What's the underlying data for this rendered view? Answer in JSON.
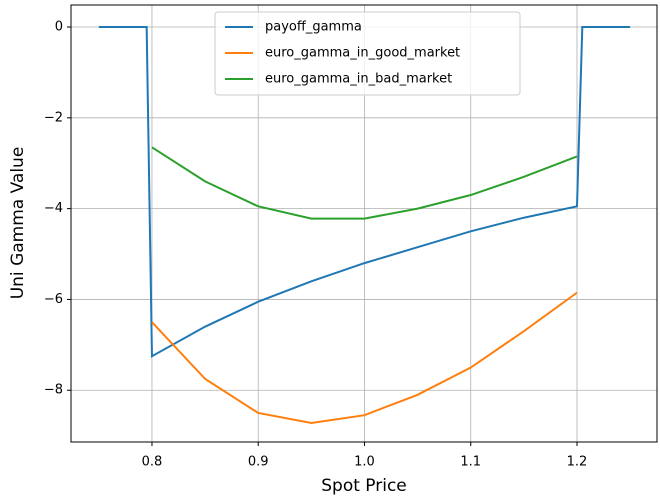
{
  "chart_data": {
    "type": "line",
    "xlabel": "Spot Price",
    "ylabel": "Uni Gamma Value",
    "x": [
      0.75,
      0.795,
      0.8,
      0.85,
      0.9,
      0.95,
      1.0,
      1.05,
      1.1,
      1.15,
      1.2,
      1.205,
      1.25
    ],
    "series": [
      {
        "name": "payoff_gamma",
        "color": "#1f77b4",
        "values": [
          0,
          0,
          -7.25,
          -6.6,
          -6.05,
          -5.6,
          -5.2,
          -4.85,
          -4.5,
          -4.2,
          -3.95,
          0,
          0
        ]
      },
      {
        "name": "euro_gamma_in_good_market",
        "color": "#ff7f0e",
        "values": [
          null,
          null,
          -6.5,
          -7.75,
          -8.5,
          -8.72,
          -8.55,
          -8.1,
          -7.5,
          -6.7,
          -5.85,
          null,
          null
        ]
      },
      {
        "name": "euro_gamma_in_bad_market",
        "color": "#2ca02c",
        "values": [
          null,
          null,
          -2.65,
          -3.4,
          -3.95,
          -4.22,
          -4.22,
          -4.0,
          -3.7,
          -3.3,
          -2.85,
          null,
          null
        ]
      }
    ],
    "xlim": [
      0.7238,
      1.2753
    ],
    "ylim": [
      -9.14,
      0.485
    ],
    "xticks": [
      0.8,
      0.9,
      {
        "value": 1,
        "label": "1.0"
      },
      1.1,
      1.2
    ],
    "yticks": [
      {
        "value": -8,
        "label": "−8"
      },
      {
        "value": -6,
        "label": "−6"
      },
      {
        "value": -4,
        "label": "−4"
      },
      {
        "value": -2,
        "label": "−2"
      },
      0
    ],
    "grid": true,
    "legend": "upper center"
  }
}
